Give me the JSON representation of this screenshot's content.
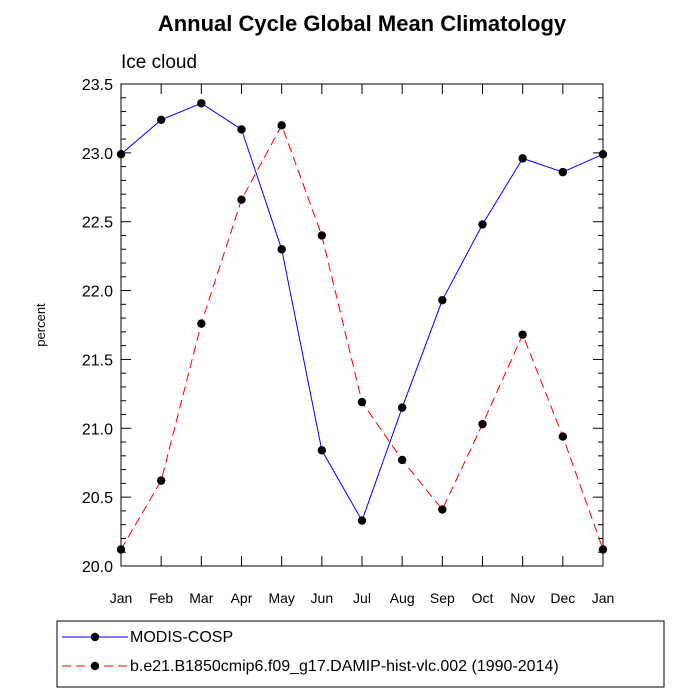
{
  "chart_data": {
    "type": "line",
    "title": "Annual Cycle Global Mean Climatology",
    "subtitle": "Ice cloud",
    "xlabel": "",
    "ylabel": "percent",
    "categories": [
      "Jan",
      "Feb",
      "Mar",
      "Apr",
      "May",
      "Jun",
      "Jul",
      "Aug",
      "Sep",
      "Oct",
      "Nov",
      "Dec",
      "Jan"
    ],
    "ylim": [
      20.0,
      23.5
    ],
    "yticks": [
      "20.0",
      "20.5",
      "21.0",
      "21.5",
      "22.0",
      "22.5",
      "23.0",
      "23.5"
    ],
    "legend_position": "bottom",
    "series": [
      {
        "name": "MODIS-COSP",
        "color": "#0000ff",
        "line_style": "solid",
        "values": [
          22.99,
          23.24,
          23.36,
          23.17,
          22.3,
          20.84,
          20.33,
          21.15,
          21.93,
          22.48,
          22.96,
          22.86,
          22.99
        ]
      },
      {
        "name": "b.e21.B1850cmip6.f09_g17.DAMIP-hist-vlc.002 (1990-2014)",
        "color": "#ff0000",
        "line_style": "dashed",
        "values": [
          20.12,
          20.62,
          21.76,
          22.66,
          23.2,
          22.4,
          21.19,
          20.77,
          20.41,
          21.03,
          21.68,
          20.94,
          20.12
        ]
      }
    ]
  }
}
